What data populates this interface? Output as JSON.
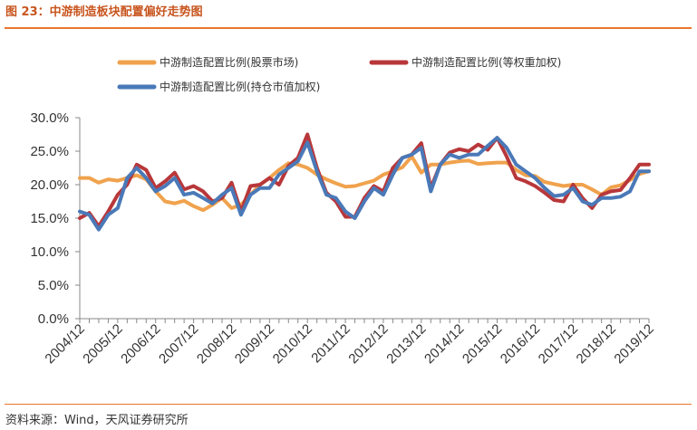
{
  "figure": {
    "title": "图 23：中游制造板块配置偏好走势图",
    "source": "资料来源：Wind，天风证券研究所"
  },
  "colors": {
    "accent": "#e8762d",
    "series": [
      "#f0a24d",
      "#b8373a",
      "#4a79b8"
    ]
  },
  "chart_data": {
    "type": "line",
    "title": "",
    "xlabel": "",
    "ylabel": "",
    "ylim": [
      0,
      30
    ],
    "yticks": [
      "0.0%",
      "5.0%",
      "10.0%",
      "15.0%",
      "20.0%",
      "25.0%",
      "30.0%"
    ],
    "xtick_labels": [
      "2004/12",
      "2005/12",
      "2006/12",
      "2007/12",
      "2008/12",
      "2009/12",
      "2010/12",
      "2011/12",
      "2012/12",
      "2013/12",
      "2014/12",
      "2015/12",
      "2016/12",
      "2017/12",
      "2018/12",
      "2019/12"
    ],
    "legend_position": "top",
    "grid": false,
    "x_start": "2004/12",
    "x_end": "2020/03",
    "x_step": "quarter",
    "series": [
      {
        "name": "中游制造配置比例(股票市场)",
        "values": [
          21.0,
          21.0,
          20.3,
          20.8,
          20.6,
          21.0,
          21.4,
          20.8,
          19.0,
          17.5,
          17.2,
          17.6,
          16.8,
          16.2,
          17.0,
          18.0,
          16.5,
          17.0,
          18.5,
          20.0,
          21.0,
          22.2,
          23.2,
          23.0,
          22.5,
          21.5,
          20.8,
          20.2,
          19.7,
          19.8,
          20.2,
          20.6,
          21.5,
          22.0,
          22.6,
          24.2,
          21.8,
          23.0,
          23.0,
          23.3,
          23.5,
          23.6,
          23.1,
          23.2,
          23.3,
          23.3,
          22.2,
          21.4,
          21.3,
          20.4,
          20.1,
          19.8,
          20.0,
          20.0,
          19.3,
          18.5,
          19.6,
          19.9,
          20.7,
          21.6,
          22.0
        ]
      },
      {
        "name": "中游制造配置比例(等权重加权)",
        "values": [
          15.0,
          15.8,
          13.8,
          16.0,
          18.5,
          20.0,
          23.0,
          22.2,
          19.5,
          20.5,
          21.8,
          19.3,
          19.8,
          19.0,
          17.5,
          18.0,
          20.3,
          16.0,
          19.8,
          20.0,
          21.0,
          20.0,
          22.8,
          24.0,
          27.5,
          22.5,
          18.8,
          17.5,
          15.2,
          15.2,
          18.0,
          19.8,
          19.0,
          22.5,
          24.0,
          24.5,
          26.2,
          19.5,
          23.0,
          24.8,
          25.3,
          25.0,
          26.0,
          25.2,
          27.0,
          24.2,
          21.0,
          20.5,
          19.8,
          18.8,
          17.7,
          17.5,
          20.0,
          18.0,
          16.5,
          18.5,
          19.0,
          19.2,
          21.0,
          23.0,
          23.0
        ]
      },
      {
        "name": "中游制造配置比例(持仓市值加权)",
        "values": [
          16.0,
          15.5,
          13.3,
          15.5,
          16.5,
          21.0,
          22.5,
          21.0,
          19.0,
          19.8,
          21.0,
          18.5,
          18.8,
          18.0,
          17.2,
          18.5,
          19.5,
          15.5,
          18.5,
          19.5,
          19.5,
          21.5,
          22.5,
          23.5,
          26.3,
          22.0,
          18.5,
          18.0,
          16.0,
          15.0,
          17.5,
          19.5,
          18.5,
          21.5,
          24.0,
          24.5,
          25.5,
          19.0,
          23.0,
          24.5,
          24.0,
          24.5,
          24.5,
          25.8,
          27.0,
          25.5,
          23.0,
          22.0,
          21.0,
          19.5,
          18.3,
          18.5,
          19.5,
          17.5,
          17.0,
          18.0,
          18.0,
          18.2,
          19.0,
          22.0,
          22.0
        ]
      }
    ]
  }
}
